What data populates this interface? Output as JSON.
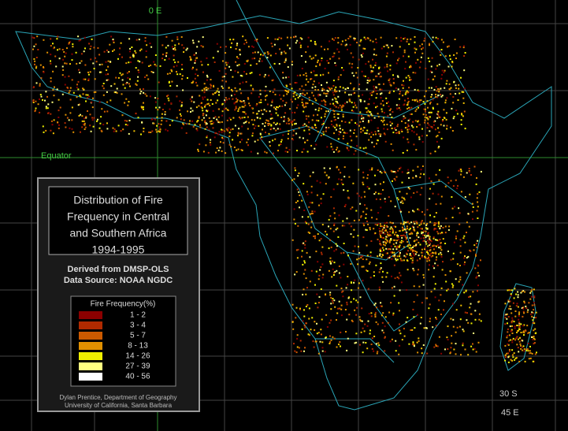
{
  "map_labels": {
    "meridian_0": "0 E",
    "equator": "Equator",
    "parallel_30s": "30 S",
    "meridian_45": "45 E"
  },
  "title": {
    "lines": [
      "Distribution of Fire",
      "Frequency in Central",
      "and Southern Africa"
    ],
    "period": "1994-1995"
  },
  "source": {
    "lines": [
      "Derived from DMSP-OLS",
      "Data Source: NOAA NGDC"
    ]
  },
  "legend": {
    "title": "Fire Frequency(%)",
    "items": [
      {
        "label": "1  -  2",
        "color": "#8b0000"
      },
      {
        "label": "3  -  4",
        "color": "#b02a00"
      },
      {
        "label": "5  -  7",
        "color": "#cc5a00"
      },
      {
        "label": "8 - 13",
        "color": "#e09000"
      },
      {
        "label": "14 - 26",
        "color": "#f0f000"
      },
      {
        "label": "27 - 39",
        "color": "#ffff80"
      },
      {
        "label": "40 - 56",
        "color": "#ffffff"
      }
    ]
  },
  "credits": {
    "lines": [
      "Dylan Prentice,  Department of Geography",
      "University of California, Santa Barbara"
    ]
  }
}
